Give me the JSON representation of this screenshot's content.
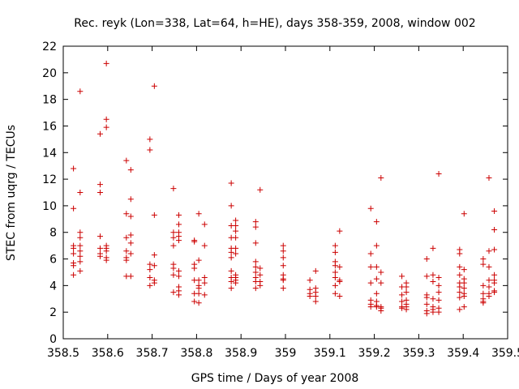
{
  "chart_data": {
    "type": "scatter",
    "title": "Rec. reyk (Lon=338, Lat=64, h=HE), days 358-359, 2008, window 002",
    "xlabel": "GPS time / Days of year 2008",
    "ylabel": "STEC from uqrg / TECUs",
    "xlim": [
      358.5,
      359.5
    ],
    "ylim": [
      0,
      22
    ],
    "x_ticks": [
      "358.5",
      "358.6",
      "358.7",
      "358.8",
      "358.9",
      "359",
      "359.1",
      "359.2",
      "359.3",
      "359.4",
      "359.5"
    ],
    "y_ticks": [
      "0",
      "2",
      "4",
      "6",
      "8",
      "10",
      "12",
      "14",
      "16",
      "18",
      "20",
      "22"
    ],
    "grid": false,
    "marker": "plus",
    "marker_color": "#cc0000",
    "series": [
      {
        "name": "",
        "points": [
          [
            358.523,
            12.8
          ],
          [
            358.523,
            9.8
          ],
          [
            358.523,
            7.0
          ],
          [
            358.523,
            6.8
          ],
          [
            358.523,
            6.4
          ],
          [
            358.523,
            5.7
          ],
          [
            358.523,
            5.5
          ],
          [
            358.523,
            4.8
          ],
          [
            358.538,
            18.6
          ],
          [
            358.538,
            11.0
          ],
          [
            358.538,
            8.0
          ],
          [
            358.538,
            7.6
          ],
          [
            358.538,
            7.0
          ],
          [
            358.538,
            6.6
          ],
          [
            358.538,
            6.2
          ],
          [
            358.538,
            5.8
          ],
          [
            358.538,
            5.1
          ],
          [
            358.583,
            15.4
          ],
          [
            358.583,
            11.6
          ],
          [
            358.583,
            11.0
          ],
          [
            358.583,
            7.7
          ],
          [
            358.583,
            6.8
          ],
          [
            358.583,
            6.4
          ],
          [
            358.583,
            6.2
          ],
          [
            358.597,
            20.7
          ],
          [
            358.597,
            16.5
          ],
          [
            358.597,
            15.9
          ],
          [
            358.597,
            7.0
          ],
          [
            358.597,
            6.8
          ],
          [
            358.597,
            6.6
          ],
          [
            358.597,
            6.1
          ],
          [
            358.597,
            5.9
          ],
          [
            358.642,
            13.4
          ],
          [
            358.642,
            9.4
          ],
          [
            358.642,
            7.6
          ],
          [
            358.642,
            6.6
          ],
          [
            358.642,
            6.1
          ],
          [
            358.642,
            5.9
          ],
          [
            358.642,
            4.7
          ],
          [
            358.652,
            12.7
          ],
          [
            358.652,
            10.5
          ],
          [
            358.652,
            9.2
          ],
          [
            358.652,
            7.8
          ],
          [
            358.652,
            7.2
          ],
          [
            358.652,
            6.4
          ],
          [
            358.652,
            4.7
          ],
          [
            358.695,
            15.0
          ],
          [
            358.695,
            14.2
          ],
          [
            358.695,
            5.6
          ],
          [
            358.695,
            5.2
          ],
          [
            358.695,
            4.6
          ],
          [
            358.695,
            4.0
          ],
          [
            358.705,
            19.0
          ],
          [
            358.705,
            9.3
          ],
          [
            358.705,
            6.3
          ],
          [
            358.705,
            5.5
          ],
          [
            358.705,
            4.4
          ],
          [
            358.705,
            4.2
          ],
          [
            358.748,
            11.3
          ],
          [
            358.748,
            8.0
          ],
          [
            358.748,
            7.6
          ],
          [
            358.748,
            7.0
          ],
          [
            358.748,
            5.6
          ],
          [
            358.748,
            5.3
          ],
          [
            358.748,
            4.8
          ],
          [
            358.748,
            3.5
          ],
          [
            358.76,
            9.3
          ],
          [
            358.76,
            8.6
          ],
          [
            358.76,
            8.0
          ],
          [
            358.76,
            7.7
          ],
          [
            358.76,
            7.4
          ],
          [
            358.76,
            5.1
          ],
          [
            358.76,
            4.7
          ],
          [
            358.76,
            3.9
          ],
          [
            358.76,
            3.6
          ],
          [
            358.76,
            3.3
          ],
          [
            358.795,
            7.4
          ],
          [
            358.795,
            7.3
          ],
          [
            358.795,
            5.6
          ],
          [
            358.795,
            5.3
          ],
          [
            358.795,
            4.4
          ],
          [
            358.795,
            3.4
          ],
          [
            358.795,
            2.8
          ],
          [
            358.805,
            9.4
          ],
          [
            358.805,
            5.9
          ],
          [
            358.805,
            4.4
          ],
          [
            358.805,
            4.0
          ],
          [
            358.805,
            3.8
          ],
          [
            358.805,
            3.4
          ],
          [
            358.805,
            2.7
          ],
          [
            358.818,
            8.6
          ],
          [
            358.818,
            7.0
          ],
          [
            358.818,
            4.6
          ],
          [
            358.818,
            4.2
          ],
          [
            358.818,
            3.3
          ],
          [
            358.878,
            11.7
          ],
          [
            358.878,
            10.0
          ],
          [
            358.878,
            8.5
          ],
          [
            358.878,
            7.6
          ],
          [
            358.878,
            6.8
          ],
          [
            358.878,
            6.5
          ],
          [
            358.878,
            6.1
          ],
          [
            358.878,
            5.1
          ],
          [
            358.878,
            4.6
          ],
          [
            358.878,
            4.3
          ],
          [
            358.878,
            3.8
          ],
          [
            358.888,
            8.9
          ],
          [
            358.888,
            8.5
          ],
          [
            358.888,
            8.1
          ],
          [
            358.888,
            7.6
          ],
          [
            358.888,
            6.8
          ],
          [
            358.888,
            6.4
          ],
          [
            358.888,
            4.8
          ],
          [
            358.888,
            4.6
          ],
          [
            358.888,
            4.4
          ],
          [
            358.888,
            4.2
          ],
          [
            358.933,
            8.8
          ],
          [
            358.933,
            8.4
          ],
          [
            358.933,
            7.2
          ],
          [
            358.933,
            5.8
          ],
          [
            358.933,
            5.4
          ],
          [
            358.933,
            5.0
          ],
          [
            358.933,
            4.6
          ],
          [
            358.933,
            4.3
          ],
          [
            358.933,
            3.8
          ],
          [
            358.943,
            11.2
          ],
          [
            358.943,
            5.3
          ],
          [
            358.943,
            4.8
          ],
          [
            358.943,
            4.3
          ],
          [
            358.943,
            4.0
          ],
          [
            358.995,
            7.0
          ],
          [
            358.995,
            6.6
          ],
          [
            358.995,
            6.1
          ],
          [
            358.995,
            5.5
          ],
          [
            358.995,
            4.8
          ],
          [
            358.995,
            4.5
          ],
          [
            358.995,
            4.4
          ],
          [
            358.995,
            3.8
          ],
          [
            359.055,
            4.4
          ],
          [
            359.055,
            3.7
          ],
          [
            359.055,
            3.4
          ],
          [
            359.055,
            3.2
          ],
          [
            359.068,
            5.1
          ],
          [
            359.068,
            3.8
          ],
          [
            359.068,
            3.5
          ],
          [
            359.068,
            3.2
          ],
          [
            359.068,
            2.8
          ],
          [
            359.112,
            7.0
          ],
          [
            359.112,
            6.5
          ],
          [
            359.112,
            5.8
          ],
          [
            359.112,
            5.5
          ],
          [
            359.112,
            5.0
          ],
          [
            359.112,
            4.6
          ],
          [
            359.112,
            4.0
          ],
          [
            359.112,
            3.4
          ],
          [
            359.122,
            8.1
          ],
          [
            359.122,
            5.4
          ],
          [
            359.122,
            4.4
          ],
          [
            359.122,
            4.3
          ],
          [
            359.122,
            3.2
          ],
          [
            359.192,
            9.8
          ],
          [
            359.192,
            6.4
          ],
          [
            359.192,
            5.4
          ],
          [
            359.192,
            4.2
          ],
          [
            359.192,
            2.9
          ],
          [
            359.192,
            2.6
          ],
          [
            359.192,
            2.4
          ],
          [
            359.205,
            8.8
          ],
          [
            359.205,
            7.0
          ],
          [
            359.205,
            5.4
          ],
          [
            359.205,
            4.5
          ],
          [
            359.205,
            3.4
          ],
          [
            359.205,
            2.8
          ],
          [
            359.205,
            2.5
          ],
          [
            359.205,
            2.4
          ],
          [
            359.215,
            12.1
          ],
          [
            359.215,
            5.0
          ],
          [
            359.215,
            4.2
          ],
          [
            359.215,
            2.4
          ],
          [
            359.215,
            2.3
          ],
          [
            359.215,
            2.1
          ],
          [
            359.262,
            4.7
          ],
          [
            359.262,
            3.9
          ],
          [
            359.262,
            3.3
          ],
          [
            359.262,
            2.8
          ],
          [
            359.262,
            2.4
          ],
          [
            359.262,
            2.3
          ],
          [
            359.272,
            4.2
          ],
          [
            359.272,
            3.9
          ],
          [
            359.272,
            3.5
          ],
          [
            359.272,
            2.9
          ],
          [
            359.272,
            2.6
          ],
          [
            359.272,
            2.4
          ],
          [
            359.272,
            2.2
          ],
          [
            359.318,
            6.0
          ],
          [
            359.318,
            4.7
          ],
          [
            359.318,
            3.3
          ],
          [
            359.318,
            3.1
          ],
          [
            359.318,
            2.6
          ],
          [
            359.318,
            2.1
          ],
          [
            359.318,
            1.9
          ],
          [
            359.332,
            6.8
          ],
          [
            359.332,
            4.8
          ],
          [
            359.332,
            4.3
          ],
          [
            359.332,
            3.0
          ],
          [
            359.332,
            2.4
          ],
          [
            359.332,
            2.2
          ],
          [
            359.332,
            2.0
          ],
          [
            359.345,
            12.4
          ],
          [
            359.345,
            4.6
          ],
          [
            359.345,
            4.0
          ],
          [
            359.345,
            3.5
          ],
          [
            359.345,
            2.9
          ],
          [
            359.345,
            2.3
          ],
          [
            359.345,
            2.0
          ],
          [
            359.392,
            6.7
          ],
          [
            359.392,
            6.4
          ],
          [
            359.392,
            5.4
          ],
          [
            359.392,
            4.8
          ],
          [
            359.392,
            4.2
          ],
          [
            359.392,
            3.9
          ],
          [
            359.392,
            3.5
          ],
          [
            359.392,
            3.1
          ],
          [
            359.392,
            2.2
          ],
          [
            359.402,
            9.4
          ],
          [
            359.402,
            5.2
          ],
          [
            359.402,
            4.5
          ],
          [
            359.402,
            4.2
          ],
          [
            359.402,
            3.8
          ],
          [
            359.402,
            3.4
          ],
          [
            359.402,
            3.2
          ],
          [
            359.402,
            2.4
          ],
          [
            359.445,
            6.0
          ],
          [
            359.445,
            5.6
          ],
          [
            359.445,
            4.0
          ],
          [
            359.445,
            3.4
          ],
          [
            359.445,
            3.0
          ],
          [
            359.445,
            2.8
          ],
          [
            359.445,
            2.7
          ],
          [
            359.458,
            12.1
          ],
          [
            359.458,
            6.6
          ],
          [
            359.458,
            5.4
          ],
          [
            359.458,
            4.4
          ],
          [
            359.458,
            3.9
          ],
          [
            359.458,
            3.4
          ],
          [
            359.458,
            3.2
          ],
          [
            359.47,
            9.6
          ],
          [
            359.47,
            8.2
          ],
          [
            359.47,
            6.7
          ],
          [
            359.47,
            4.8
          ],
          [
            359.47,
            4.4
          ],
          [
            359.47,
            4.2
          ],
          [
            359.47,
            3.6
          ],
          [
            359.47,
            3.5
          ]
        ]
      }
    ]
  }
}
